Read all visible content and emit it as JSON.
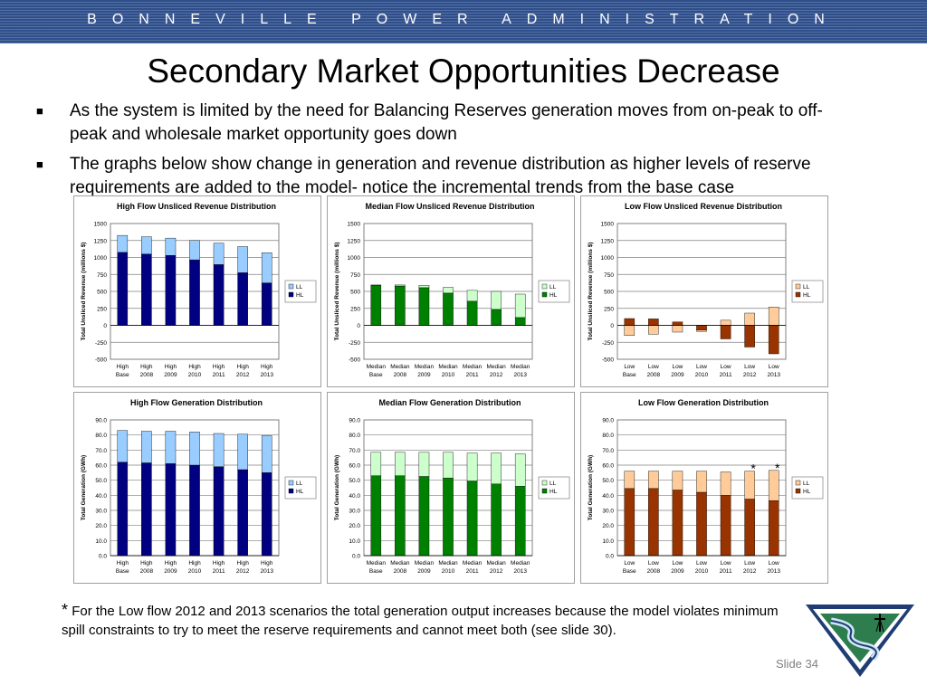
{
  "header": {
    "banner": "BONNEVILLE POWER ADMINISTRATION"
  },
  "slide": {
    "title": "Secondary Market Opportunities Decrease",
    "bullets": [
      "As the system is limited by the need for Balancing Reserves generation moves from on-peak to off-peak and wholesale market opportunity goes down",
      "The graphs below show change in generation and revenue distribution as higher levels of reserve requirements are added to the model- notice the incremental trends from the base case"
    ],
    "footnote_star": "*",
    "footnote": "For the Low flow 2012 and 2013 scenarios the total generation output increases because the model violates minimum spill constraints to try to meet the reserve requirements and cannot meet both (see slide 30).",
    "slide_number": "Slide 34"
  },
  "colors": {
    "dark_blue": "#000080",
    "light_blue": "#99ccff",
    "dark_green": "#008000",
    "light_green": "#ccffcc",
    "dark_red": "#993300",
    "light_orange": "#ffcc99"
  },
  "chart_data": [
    {
      "type": "bar",
      "stacked": true,
      "title": "High Flow Unsliced Revenue Distribution",
      "ylabel": "Total Unsliced Revenue (millions $)",
      "ylim": [
        -500,
        1500
      ],
      "yticks": [
        "1500",
        "1250",
        "1000",
        "750",
        "500",
        "250",
        "0",
        "-250",
        "-500"
      ],
      "categories": [
        [
          "High",
          "Base"
        ],
        [
          "High",
          "2008"
        ],
        [
          "High",
          "2009"
        ],
        [
          "High",
          "2010"
        ],
        [
          "High",
          "2011"
        ],
        [
          "High",
          "2012"
        ],
        [
          "High",
          "2013"
        ]
      ],
      "series": [
        {
          "name": "HL",
          "color": "#000080",
          "values": [
            1075,
            1050,
            1030,
            965,
            895,
            775,
            625
          ]
        },
        {
          "name": "LL",
          "color": "#99ccff",
          "values": [
            250,
            255,
            255,
            285,
            315,
            385,
            445
          ]
        }
      ],
      "legend": [
        "LL",
        "HL"
      ],
      "legend_position": "right",
      "grid": true
    },
    {
      "type": "bar",
      "stacked": true,
      "title": "Median Flow Unsliced Revenue Distribution",
      "ylabel": "Total Unsliced Revenue (millions $)",
      "ylim": [
        -500,
        1500
      ],
      "yticks": [
        "1500",
        "1250",
        "1000",
        "750",
        "500",
        "250",
        "0",
        "-250",
        "-500"
      ],
      "categories": [
        [
          "Median",
          "Base"
        ],
        [
          "Median",
          "2008"
        ],
        [
          "Median",
          "2009"
        ],
        [
          "Median",
          "2010"
        ],
        [
          "Median",
          "2011"
        ],
        [
          "Median",
          "2012"
        ],
        [
          "Median",
          "2013"
        ]
      ],
      "series": [
        {
          "name": "HL",
          "color": "#008000",
          "values": [
            590,
            580,
            555,
            475,
            355,
            235,
            115
          ]
        },
        {
          "name": "LL",
          "color": "#ccffcc",
          "values": [
            5,
            15,
            35,
            85,
            160,
            265,
            345
          ]
        }
      ],
      "legend": [
        "LL",
        "HL"
      ],
      "legend_position": "right",
      "grid": true
    },
    {
      "type": "bar",
      "stacked": true,
      "title": "Low Flow Unsliced Revenue Distribution",
      "ylabel": "Total Unsliced Revenue (millions $)",
      "ylim": [
        -500,
        1500
      ],
      "yticks": [
        "1500",
        "1250",
        "1000",
        "750",
        "500",
        "250",
        "0",
        "-250",
        "-500"
      ],
      "categories": [
        [
          "Low",
          "Base"
        ],
        [
          "Low",
          "2008"
        ],
        [
          "Low",
          "2009"
        ],
        [
          "Low",
          "2010"
        ],
        [
          "Low",
          "2011"
        ],
        [
          "Low",
          "2012"
        ],
        [
          "Low",
          "2013"
        ]
      ],
      "series": [
        {
          "name": "HL",
          "color": "#993300",
          "values": [
            100,
            95,
            50,
            -70,
            -200,
            -320,
            -420
          ]
        },
        {
          "name": "LL",
          "color": "#ffcc99",
          "values": [
            -150,
            -130,
            -100,
            -20,
            75,
            180,
            270
          ]
        }
      ],
      "legend": [
        "LL",
        "HL"
      ],
      "legend_position": "right",
      "grid": true
    },
    {
      "type": "bar",
      "stacked": true,
      "title": "High Flow Generation Distribution",
      "ylabel": "Total Generation (GWh)",
      "ylim": [
        0,
        90
      ],
      "yticks": [
        "90.0",
        "80.0",
        "70.0",
        "60.0",
        "50.0",
        "40.0",
        "30.0",
        "20.0",
        "10.0",
        "0.0"
      ],
      "categories": [
        [
          "High",
          "Base"
        ],
        [
          "High",
          "2008"
        ],
        [
          "High",
          "2009"
        ],
        [
          "High",
          "2010"
        ],
        [
          "High",
          "2011"
        ],
        [
          "High",
          "2012"
        ],
        [
          "High",
          "2013"
        ]
      ],
      "series": [
        {
          "name": "HL",
          "color": "#000080",
          "values": [
            62.0,
            61.5,
            61.0,
            60.0,
            59.0,
            57.0,
            55.0
          ]
        },
        {
          "name": "LL",
          "color": "#99ccff",
          "values": [
            21.0,
            21.0,
            21.5,
            22.0,
            22.0,
            23.5,
            24.5
          ]
        }
      ],
      "legend": [
        "LL",
        "HL"
      ],
      "legend_position": "right",
      "grid": true
    },
    {
      "type": "bar",
      "stacked": true,
      "title": "Median Flow Generation Distribution",
      "ylabel": "Total Generation (GWh)",
      "ylim": [
        0,
        90
      ],
      "yticks": [
        "90.0",
        "80.0",
        "70.0",
        "60.0",
        "50.0",
        "40.0",
        "30.0",
        "20.0",
        "10.0",
        "0.0"
      ],
      "categories": [
        [
          "Median",
          "Base"
        ],
        [
          "Median",
          "2008"
        ],
        [
          "Median",
          "2009"
        ],
        [
          "Median",
          "2010"
        ],
        [
          "Median",
          "2011"
        ],
        [
          "Median",
          "2012"
        ],
        [
          "Median",
          "2013"
        ]
      ],
      "series": [
        {
          "name": "HL",
          "color": "#008000",
          "values": [
            53.0,
            53.0,
            52.5,
            51.5,
            49.5,
            47.5,
            46.0
          ]
        },
        {
          "name": "LL",
          "color": "#ccffcc",
          "values": [
            15.5,
            15.5,
            16.0,
            17.0,
            18.5,
            20.5,
            21.5
          ]
        }
      ],
      "legend": [
        "LL",
        "HL"
      ],
      "legend_position": "right",
      "grid": true
    },
    {
      "type": "bar",
      "stacked": true,
      "title": "Low Flow Generation Distribution",
      "ylabel": "Total Generation (GWh)",
      "ylim": [
        0,
        90
      ],
      "yticks": [
        "90.0",
        "80.0",
        "70.0",
        "60.0",
        "50.0",
        "40.0",
        "30.0",
        "20.0",
        "10.0",
        "0.0"
      ],
      "categories": [
        [
          "Low",
          "Base"
        ],
        [
          "Low",
          "2008"
        ],
        [
          "Low",
          "2009"
        ],
        [
          "Low",
          "2010"
        ],
        [
          "Low",
          "2011"
        ],
        [
          "Low",
          "2012"
        ],
        [
          "Low",
          "2013"
        ]
      ],
      "series": [
        {
          "name": "HL",
          "color": "#993300",
          "values": [
            44.5,
            44.5,
            43.5,
            42.0,
            40.0,
            37.5,
            36.5
          ]
        },
        {
          "name": "LL",
          "color": "#ffcc99",
          "values": [
            11.5,
            11.5,
            12.5,
            14.0,
            15.5,
            18.5,
            20.0
          ]
        }
      ],
      "annotations": [
        {
          "category": [
            "Low",
            "2012"
          ],
          "text": "*"
        },
        {
          "category": [
            "Low",
            "2013"
          ],
          "text": "*"
        }
      ],
      "legend": [
        "LL",
        "HL"
      ],
      "legend_position": "right",
      "grid": true
    }
  ]
}
